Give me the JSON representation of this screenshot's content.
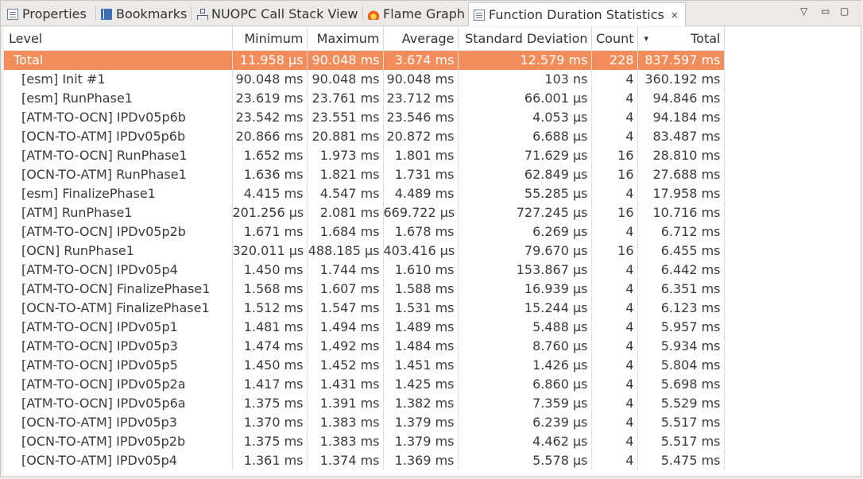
{
  "tabs": [
    {
      "label": "Properties",
      "icon": "properties-icon"
    },
    {
      "label": "Bookmarks",
      "icon": "bookmarks-icon"
    },
    {
      "label": "NUOPC Call Stack View",
      "icon": "call-stack-icon"
    },
    {
      "label": "Flame Graph",
      "icon": "flame-icon"
    },
    {
      "label": "Function Duration Statistics",
      "icon": "statistics-icon",
      "active": true
    }
  ],
  "tab_close": "×",
  "window_controls": {
    "view_menu": "▽",
    "minimize": "▭",
    "maximize": "▢"
  },
  "table": {
    "columns": [
      "Level",
      "Minimum",
      "Maximum",
      "Average",
      "Standard Deviation",
      "Count",
      "Total"
    ],
    "sort_indicator": "▾",
    "total_row": {
      "level": "Total",
      "expander": "·",
      "min": "11.958 µs",
      "max": "90.048 ms",
      "avg": "3.674 ms",
      "std": "12.579 ms",
      "count": "228",
      "total": "837.597 ms"
    },
    "rows": [
      {
        "level": "[esm] Init #1",
        "min": "90.048 ms",
        "max": "90.048 ms",
        "avg": "90.048 ms",
        "std": "103 ns",
        "count": "4",
        "total": "360.192 ms"
      },
      {
        "level": "[esm] RunPhase1",
        "min": "23.619 ms",
        "max": "23.761 ms",
        "avg": "23.712 ms",
        "std": "66.001 µs",
        "count": "4",
        "total": "94.846 ms"
      },
      {
        "level": "[ATM-TO-OCN] IPDv05p6b",
        "min": "23.542 ms",
        "max": "23.551 ms",
        "avg": "23.546 ms",
        "std": "4.053 µs",
        "count": "4",
        "total": "94.184 ms"
      },
      {
        "level": "[OCN-TO-ATM] IPDv05p6b",
        "min": "20.866 ms",
        "max": "20.881 ms",
        "avg": "20.872 ms",
        "std": "6.688 µs",
        "count": "4",
        "total": "83.487 ms"
      },
      {
        "level": "[ATM-TO-OCN] RunPhase1",
        "min": "1.652 ms",
        "max": "1.973 ms",
        "avg": "1.801 ms",
        "std": "71.629 µs",
        "count": "16",
        "total": "28.810 ms"
      },
      {
        "level": "[OCN-TO-ATM] RunPhase1",
        "min": "1.636 ms",
        "max": "1.821 ms",
        "avg": "1.731 ms",
        "std": "62.849 µs",
        "count": "16",
        "total": "27.688 ms"
      },
      {
        "level": "[esm] FinalizePhase1",
        "min": "4.415 ms",
        "max": "4.547 ms",
        "avg": "4.489 ms",
        "std": "55.285 µs",
        "count": "4",
        "total": "17.958 ms"
      },
      {
        "level": "[ATM] RunPhase1",
        "min": "201.256 µs",
        "max": "2.081 ms",
        "avg": "669.722 µs",
        "std": "727.245 µs",
        "count": "16",
        "total": "10.716 ms"
      },
      {
        "level": "[ATM-TO-OCN] IPDv05p2b",
        "min": "1.671 ms",
        "max": "1.684 ms",
        "avg": "1.678 ms",
        "std": "6.269 µs",
        "count": "4",
        "total": "6.712 ms"
      },
      {
        "level": "[OCN] RunPhase1",
        "min": "320.011 µs",
        "max": "488.185 µs",
        "avg": "403.416 µs",
        "std": "79.670 µs",
        "count": "16",
        "total": "6.455 ms"
      },
      {
        "level": "[ATM-TO-OCN] IPDv05p4",
        "min": "1.450 ms",
        "max": "1.744 ms",
        "avg": "1.610 ms",
        "std": "153.867 µs",
        "count": "4",
        "total": "6.442 ms"
      },
      {
        "level": "[ATM-TO-OCN] FinalizePhase1",
        "min": "1.568 ms",
        "max": "1.607 ms",
        "avg": "1.588 ms",
        "std": "16.939 µs",
        "count": "4",
        "total": "6.351 ms"
      },
      {
        "level": "[OCN-TO-ATM] FinalizePhase1",
        "min": "1.512 ms",
        "max": "1.547 ms",
        "avg": "1.531 ms",
        "std": "15.244 µs",
        "count": "4",
        "total": "6.123 ms"
      },
      {
        "level": "[ATM-TO-OCN] IPDv05p1",
        "min": "1.481 ms",
        "max": "1.494 ms",
        "avg": "1.489 ms",
        "std": "5.488 µs",
        "count": "4",
        "total": "5.957 ms"
      },
      {
        "level": "[ATM-TO-OCN] IPDv05p3",
        "min": "1.474 ms",
        "max": "1.492 ms",
        "avg": "1.484 ms",
        "std": "8.760 µs",
        "count": "4",
        "total": "5.934 ms"
      },
      {
        "level": "[ATM-TO-OCN] IPDv05p5",
        "min": "1.450 ms",
        "max": "1.452 ms",
        "avg": "1.451 ms",
        "std": "1.426 µs",
        "count": "4",
        "total": "5.804 ms"
      },
      {
        "level": "[ATM-TO-OCN] IPDv05p2a",
        "min": "1.417 ms",
        "max": "1.431 ms",
        "avg": "1.425 ms",
        "std": "6.860 µs",
        "count": "4",
        "total": "5.698 ms"
      },
      {
        "level": "[ATM-TO-OCN] IPDv05p6a",
        "min": "1.375 ms",
        "max": "1.391 ms",
        "avg": "1.382 ms",
        "std": "7.359 µs",
        "count": "4",
        "total": "5.529 ms"
      },
      {
        "level": "[OCN-TO-ATM] IPDv05p3",
        "min": "1.370 ms",
        "max": "1.383 ms",
        "avg": "1.379 ms",
        "std": "6.239 µs",
        "count": "4",
        "total": "5.517 ms"
      },
      {
        "level": "[OCN-TO-ATM] IPDv05p2b",
        "min": "1.375 ms",
        "max": "1.383 ms",
        "avg": "1.379 ms",
        "std": "4.462 µs",
        "count": "4",
        "total": "5.517 ms"
      },
      {
        "level": "[OCN-TO-ATM] IPDv05p4",
        "min": "1.361 ms",
        "max": "1.374 ms",
        "avg": "1.369 ms",
        "std": "5.578 µs",
        "count": "4",
        "total": "5.475 ms"
      }
    ]
  }
}
